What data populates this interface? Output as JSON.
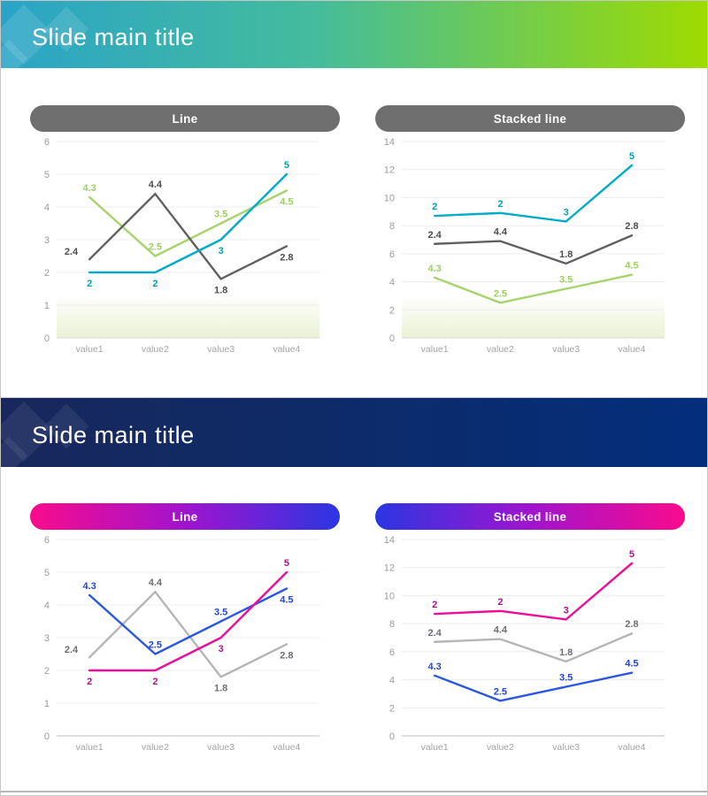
{
  "slide1": {
    "title": "Slide main title"
  },
  "slide2": {
    "title": "Slide main title"
  },
  "palette": {
    "header1_gradient": [
      "#2AA4C7",
      "#45BC9C",
      "#9EDB00"
    ],
    "header2_gradient": [
      "#18285C",
      "#032E7C"
    ],
    "pill_gray": "#6F6F6F",
    "pill_pink": "#F90B8D",
    "pill_purple": "#A014CE",
    "pill_blue": "#2B36E2",
    "teal_line": "#00ACC8",
    "green_line": "#A6D46A",
    "dark_gray_line": "#606060",
    "light_gray_line": "#B5B5B8",
    "blue_line": "#2B57E2",
    "magenta_line": "#EE0D98"
  },
  "chart_data": [
    {
      "type": "line",
      "slide": 1,
      "title": "Line",
      "categories": [
        "value1",
        "value2",
        "value3",
        "value4"
      ],
      "ylim": [
        0,
        6
      ],
      "yticks": [
        0,
        1,
        2,
        3,
        4,
        5,
        6
      ],
      "grid": true,
      "legend": "none",
      "stacked": false,
      "gradient_fill": true,
      "series": [
        {
          "name": "green-series",
          "color": "#A6D46A",
          "label_color": "#9FCF5E",
          "values": [
            4.3,
            2.5,
            3.5,
            4.5
          ],
          "label_pos": [
            "above",
            "above",
            "above",
            "below"
          ]
        },
        {
          "name": "gray-series",
          "color": "#606060",
          "label_color": "#4E4E4E",
          "values": [
            2.4,
            4.4,
            1.8,
            2.8
          ],
          "label_pos": [
            "left",
            "above",
            "below",
            "below"
          ]
        },
        {
          "name": "teal-series",
          "color": "#00ACC8",
          "label_color": "#00A0BC",
          "values": [
            2,
            2,
            3,
            5
          ],
          "label_pos": [
            "below",
            "below",
            "below",
            "above"
          ]
        }
      ]
    },
    {
      "type": "line",
      "slide": 1,
      "title": "Stacked line",
      "categories": [
        "value1",
        "value2",
        "value3",
        "value4"
      ],
      "ylim": [
        0,
        14
      ],
      "yticks": [
        0,
        2,
        4,
        6,
        8,
        10,
        12,
        14
      ],
      "grid": true,
      "legend": "none",
      "stacked": true,
      "gradient_fill": true,
      "series": [
        {
          "name": "green-series",
          "color": "#A6D46A",
          "label_color": "#9FCF5E",
          "values": [
            4.3,
            2.5,
            3.5,
            4.5
          ],
          "label_pos": [
            "above",
            "above",
            "above",
            "above"
          ]
        },
        {
          "name": "gray-series",
          "color": "#606060",
          "label_color": "#4E4E4E",
          "values": [
            2.4,
            4.4,
            1.8,
            2.8
          ],
          "label_pos": [
            "above",
            "above",
            "above",
            "above"
          ]
        },
        {
          "name": "teal-series",
          "color": "#00ACC8",
          "label_color": "#00A0BC",
          "values": [
            2,
            2,
            3,
            5
          ],
          "label_pos": [
            "above",
            "above",
            "above",
            "above"
          ]
        }
      ]
    },
    {
      "type": "line",
      "slide": 2,
      "title": "Line",
      "categories": [
        "value1",
        "value2",
        "value3",
        "value4"
      ],
      "ylim": [
        0,
        6
      ],
      "yticks": [
        0,
        1,
        2,
        3,
        4,
        5,
        6
      ],
      "grid": true,
      "legend": "none",
      "stacked": false,
      "gradient_fill": false,
      "series": [
        {
          "name": "gray-series",
          "color": "#B5B5B8",
          "label_color": "#6F6F74",
          "values": [
            2.4,
            4.4,
            1.8,
            2.8
          ],
          "label_pos": [
            "left",
            "above",
            "below",
            "below"
          ]
        },
        {
          "name": "blue-series",
          "color": "#2B57E2",
          "label_color": "#2546D2",
          "values": [
            4.3,
            2.5,
            3.5,
            4.5
          ],
          "label_pos": [
            "above",
            "above",
            "above",
            "below"
          ]
        },
        {
          "name": "magenta-series",
          "color": "#EE0D98",
          "label_color": "#AE1090",
          "values": [
            2,
            2,
            3,
            5
          ],
          "label_pos": [
            "below",
            "below",
            "below",
            "above"
          ]
        }
      ]
    },
    {
      "type": "line",
      "slide": 2,
      "title": "Stacked line",
      "categories": [
        "value1",
        "value2",
        "value3",
        "value4"
      ],
      "ylim": [
        0,
        14
      ],
      "yticks": [
        0,
        2,
        4,
        6,
        8,
        10,
        12,
        14
      ],
      "grid": true,
      "legend": "none",
      "stacked": true,
      "gradient_fill": false,
      "series": [
        {
          "name": "blue-series",
          "color": "#2B57E2",
          "label_color": "#2546D2",
          "values": [
            4.3,
            2.5,
            3.5,
            4.5
          ],
          "label_pos": [
            "above",
            "above",
            "above",
            "above"
          ]
        },
        {
          "name": "gray-series",
          "color": "#B5B5B8",
          "label_color": "#6F6F74",
          "values": [
            2.4,
            4.4,
            1.8,
            2.8
          ],
          "label_pos": [
            "above",
            "above",
            "above",
            "above"
          ]
        },
        {
          "name": "magenta-series",
          "color": "#EE0D98",
          "label_color": "#AE1090",
          "values": [
            2,
            2,
            3,
            5
          ],
          "label_pos": [
            "above",
            "above",
            "above",
            "above"
          ]
        }
      ]
    }
  ]
}
